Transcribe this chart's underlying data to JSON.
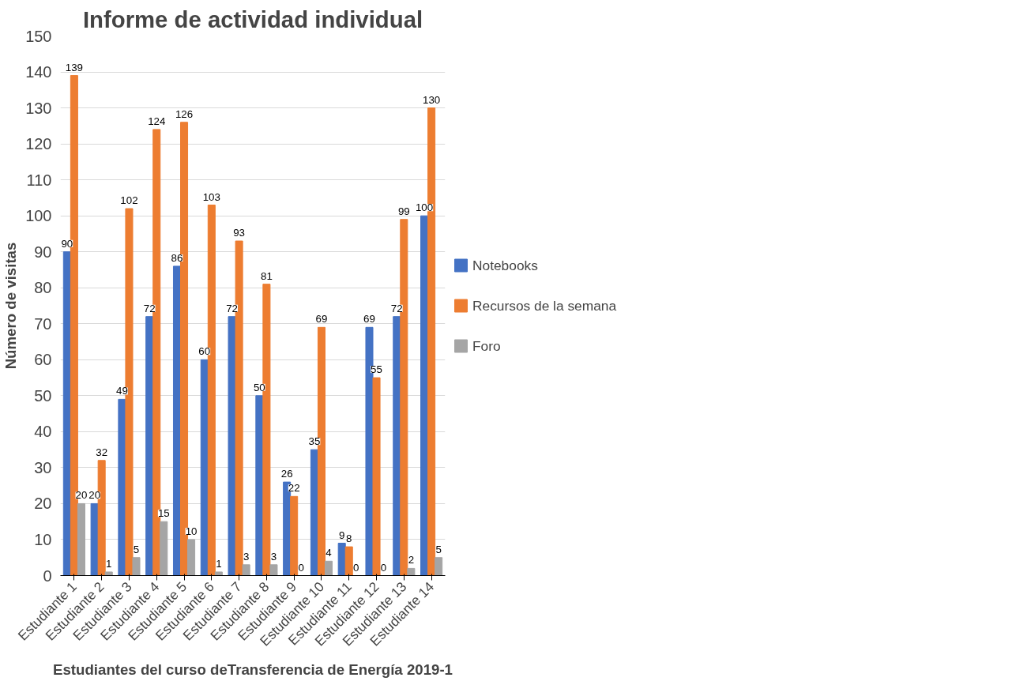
{
  "chart_data": {
    "type": "bar",
    "title": "Informe de actividad individual",
    "xlabel": "Estudiantes del curso deTransferencia de Energía 2019-1",
    "ylabel": "Número de visitas",
    "categories": [
      "Estudiante 1",
      "Estudiante 2",
      "Estudiante 3",
      "Estudiante 4",
      "Estudiante 5",
      "Estudiante 6",
      "Estudiante 7",
      "Estudiante 8",
      "Estudiante 9",
      "Estudiante 10",
      "Estudiante 11",
      "Estudiante 12",
      "Estudiante 13",
      "Estudiante 14"
    ],
    "series": [
      {
        "name": "Notebooks",
        "color": "#4472c4",
        "values": [
          90,
          20,
          49,
          72,
          86,
          60,
          72,
          50,
          26,
          35,
          9,
          69,
          72,
          100
        ]
      },
      {
        "name": "Recursos de la semana",
        "color": "#ed7d31",
        "values": [
          139,
          32,
          102,
          124,
          126,
          103,
          93,
          81,
          22,
          69,
          8,
          55,
          99,
          130
        ]
      },
      {
        "name": "Foro",
        "color": "#a5a5a5",
        "values": [
          20,
          1,
          5,
          15,
          10,
          1,
          3,
          3,
          0,
          4,
          0,
          0,
          2,
          5
        ]
      }
    ],
    "ylim": [
      0,
      150
    ],
    "yticks": [
      0,
      10,
      20,
      30,
      40,
      50,
      60,
      70,
      80,
      90,
      100,
      110,
      120,
      130,
      140,
      150
    ],
    "grid": "y",
    "legend": "right",
    "data_labels": true
  }
}
